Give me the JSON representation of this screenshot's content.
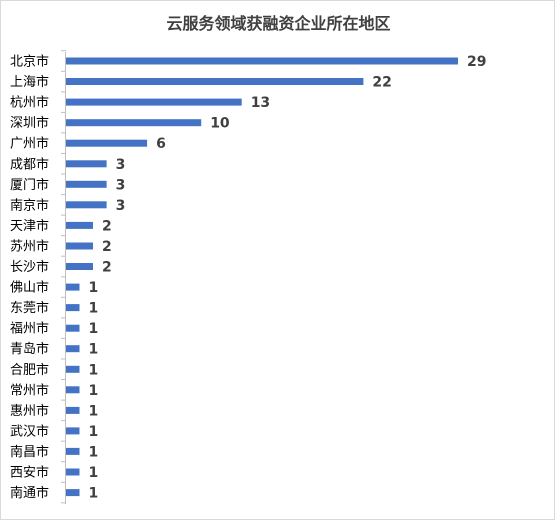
{
  "chart_data": {
    "type": "bar",
    "orientation": "horizontal",
    "title": "云服务领域获融资企业所在地区",
    "xlabel": "",
    "ylabel": "",
    "categories": [
      "北京市",
      "上海市",
      "杭州市",
      "深圳市",
      "广州市",
      "成都市",
      "厦门市",
      "南京市",
      "天津市",
      "苏州市",
      "长沙市",
      "佛山市",
      "东莞市",
      "福州市",
      "青岛市",
      "合肥市",
      "常州市",
      "惠州市",
      "武汉市",
      "南昌市",
      "西安市",
      "南通市"
    ],
    "values": [
      29,
      22,
      13,
      10,
      6,
      3,
      3,
      3,
      2,
      2,
      2,
      1,
      1,
      1,
      1,
      1,
      1,
      1,
      1,
      1,
      1,
      1
    ],
    "xlim": [
      0,
      29
    ],
    "grid": false,
    "legend": "none",
    "data_labels": true,
    "bar_color": "#4472c4"
  }
}
